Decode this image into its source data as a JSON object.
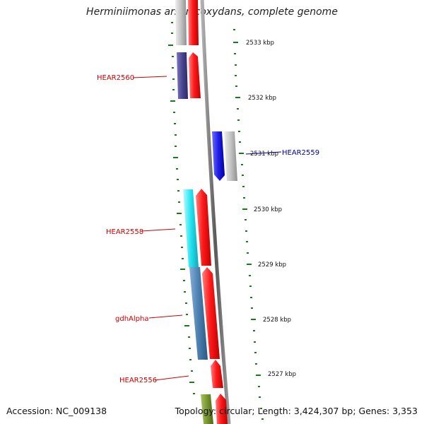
{
  "title": "Herminiimonas arsenicoxydans, complete genome",
  "accession_label": "Accession: NC_009138",
  "topology_label": "Topology: circular; Length: 3,424,307 bp; Genes: 3,353",
  "ticks": [
    "2533 kbp",
    "2532 kbp",
    "2531 kbp",
    "2530 kbp",
    "2529 kbp",
    "2528 kbp",
    "2527 kbp"
  ],
  "gene_labels": {
    "hear2560": "HEAR2560",
    "hear2559": "HEAR2559",
    "hear2558": "HEAR2558",
    "gdhalpha": "gdhAlpha",
    "hear2556": "HEAR2556"
  },
  "colors": {
    "label_red": "#cc0000",
    "label_blue": "#000099",
    "tick_green": "#1a7a1a",
    "backbone": "#7a7a7a",
    "gene_red": "#ff1a1a",
    "gene_grey": "#c4c4c4",
    "gene_purple": "#4a4590",
    "gene_blue": "#1f1fe6",
    "gene_cyan": "#22e3f0",
    "gene_steel": "#4a7fb0",
    "gene_olive": "#7a9630"
  }
}
